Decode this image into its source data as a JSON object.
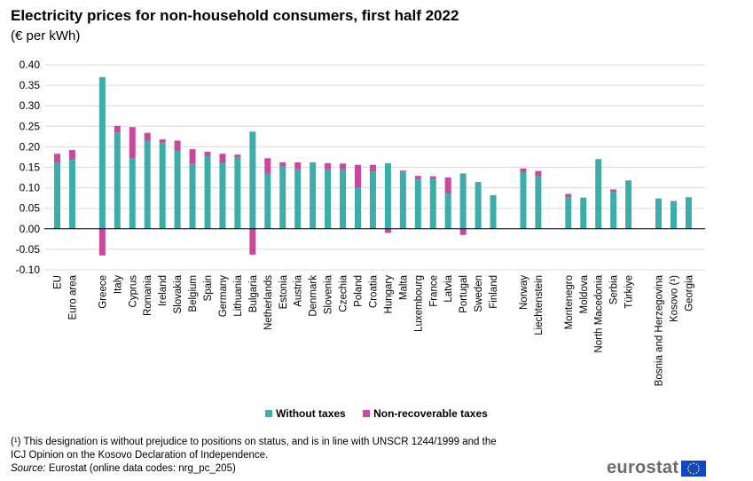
{
  "title": "Electricity prices for non-household consumers, first half 2022",
  "subtitle": "(€ per kWh)",
  "legend": {
    "without_taxes": "Without taxes",
    "non_recoverable": "Non-recoverable taxes"
  },
  "footnote": "(¹) This designation is without prejudice to positions on status, and is in line with UNSCR 1244/1999 and the ICJ Opinion on the Kosovo Declaration of Independence.",
  "source": {
    "label": "Source:",
    "text": " Eurostat (online data codes: nrg_pc_205)"
  },
  "logo": {
    "text": "eurostat"
  },
  "colors": {
    "without_taxes": "#3dada9",
    "non_recoverable": "#c9489b",
    "grid": "#dcdcdc"
  },
  "chart_data": {
    "type": "bar",
    "stacked": true,
    "ylim": [
      -0.1,
      0.4
    ],
    "yticks": [
      "0.40",
      "0.35",
      "0.30",
      "0.25",
      "0.20",
      "0.15",
      "0.10",
      "0.05",
      "0.00",
      "-0.05",
      "-0.10"
    ],
    "grid": true,
    "legend_position": "bottom",
    "groups": [
      [
        "EU",
        "Euro area"
      ],
      [
        "Greece",
        "Italy",
        "Cyprus",
        "Romania",
        "Ireland",
        "Slovakia",
        "Belgium",
        "Spain",
        "Germany",
        "Lithuania",
        "Bulgaria",
        "Netherlands",
        "Estonia",
        "Austria",
        "Denmark",
        "Slovenia",
        "Czechia",
        "Poland",
        "Croatia",
        "Hungary",
        "Malta",
        "Luxembourg",
        "France",
        "Latvia",
        "Portugal",
        "Sweden",
        "Finland"
      ],
      [
        "Norway",
        "Liechtenstein"
      ],
      [
        "Montenegro",
        "Moldova",
        "North Macedonia",
        "Serbia",
        "Türkiye"
      ],
      [
        "Bosnia and Herzegovina",
        "Kosovo (¹)",
        "Georgia"
      ]
    ],
    "categories": [
      "EU",
      "Euro area",
      "Greece",
      "Italy",
      "Cyprus",
      "Romania",
      "Ireland",
      "Slovakia",
      "Belgium",
      "Spain",
      "Germany",
      "Lithuania",
      "Bulgaria",
      "Netherlands",
      "Estonia",
      "Austria",
      "Denmark",
      "Slovenia",
      "Czechia",
      "Poland",
      "Croatia",
      "Hungary",
      "Malta",
      "Luxembourg",
      "France",
      "Latvia",
      "Portugal",
      "Sweden",
      "Finland",
      "Norway",
      "Liechtenstein",
      "Montenegro",
      "Moldova",
      "North Macedonia",
      "Serbia",
      "Türkiye",
      "Bosnia and Herzegovina",
      "Kosovo (¹)",
      "Georgia"
    ],
    "series": [
      {
        "name": "Without taxes",
        "values": [
          0.162,
          0.168,
          0.37,
          0.235,
          0.172,
          0.215,
          0.21,
          0.19,
          0.158,
          0.178,
          0.16,
          0.175,
          0.237,
          0.135,
          0.152,
          0.145,
          0.16,
          0.145,
          0.145,
          0.1,
          0.14,
          0.16,
          0.14,
          0.121,
          0.122,
          0.086,
          0.135,
          0.112,
          0.082,
          0.138,
          0.128,
          0.077,
          0.076,
          0.17,
          0.09,
          0.118,
          0.073,
          0.067,
          0.077
        ]
      },
      {
        "name": "Non-recoverable taxes",
        "values": [
          0.021,
          0.024,
          -0.065,
          0.016,
          0.076,
          0.019,
          0.008,
          0.025,
          0.036,
          0.01,
          0.023,
          0.006,
          -0.063,
          0.037,
          0.01,
          0.017,
          0.002,
          0.015,
          0.014,
          0.056,
          0.016,
          -0.01,
          0.002,
          0.008,
          0.006,
          0.039,
          -0.015,
          0.002,
          0.0,
          0.009,
          0.013,
          0.008,
          0.0,
          0.0,
          0.006,
          0.0,
          0.001,
          0.001,
          0.0
        ]
      }
    ]
  }
}
